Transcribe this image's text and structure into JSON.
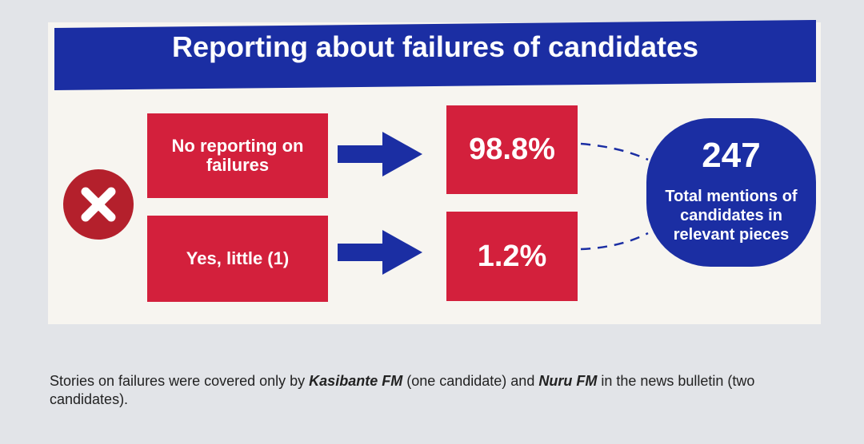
{
  "header": {
    "title": "Reporting about failures of candidates"
  },
  "rows": [
    {
      "label": "No reporting on failures",
      "value": "98.8%"
    },
    {
      "label": "Yes, little (1)",
      "value": "1.2%"
    }
  ],
  "total": {
    "value": "247",
    "label": "Total mentions of candidates in relevant pieces"
  },
  "caption": [
    "Stories on failures were covered only by ",
    "Kasibante FM",
    " (one candidate) and ",
    "Nuru FM",
    " in the news bulletin (two candidates)."
  ]
}
